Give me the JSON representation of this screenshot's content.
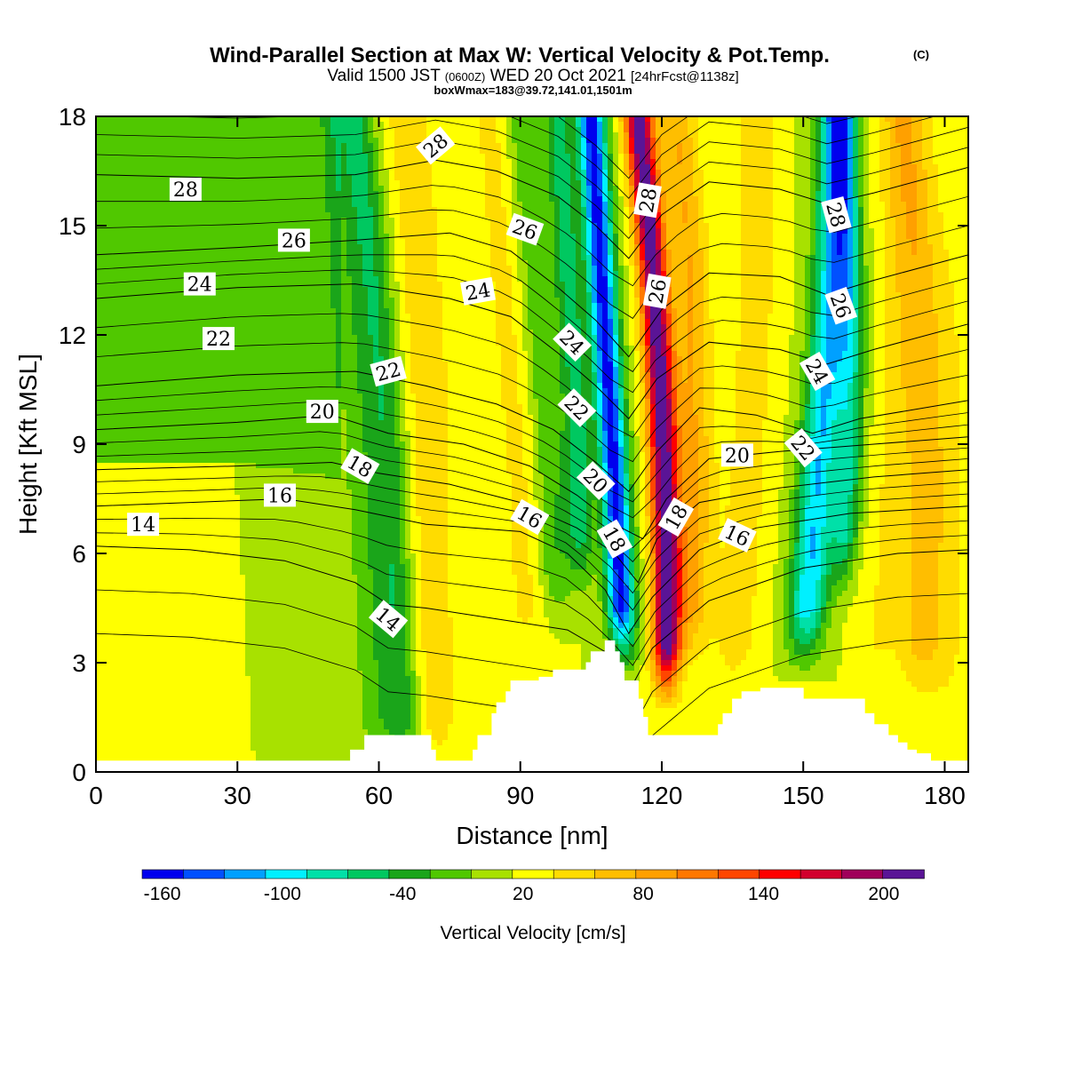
{
  "chart_data": {
    "type": "heatmap",
    "title": "Wind-Parallel Section at Max W: Vertical Velocity & Pot.Temp.",
    "title_mark": "(C)",
    "subtitle_parts": [
      "Valid 1500 JST",
      "(0600Z)",
      "WED 20 Oct 2021",
      "[24hrFcst@1138z]"
    ],
    "subtitle2": "boxWmax=183@39.72,141.01,1501m",
    "xlabel": "Distance [nm]",
    "ylabel": "Height [Kft MSL]",
    "xlim": [
      0,
      185
    ],
    "ylim": [
      0,
      18
    ],
    "xticks": [
      "0",
      "30",
      "60",
      "90",
      "120",
      "150",
      "180"
    ],
    "xtick_values": [
      0,
      30,
      60,
      90,
      120,
      150,
      180
    ],
    "yticks": [
      "0",
      "3",
      "6",
      "9",
      "12",
      "15",
      "18"
    ],
    "ytick_values": [
      0,
      3,
      6,
      9,
      12,
      15,
      18
    ],
    "colorbar": {
      "label": "Vertical Velocity [cm/s]",
      "min": -170,
      "max": 220,
      "step": 20,
      "tick_labels": [
        "-160",
        "-100",
        "-40",
        "20",
        "80",
        "140",
        "200"
      ],
      "tick_values": [
        -160,
        -100,
        -40,
        20,
        80,
        140,
        200
      ],
      "colors": [
        "#0000ee",
        "#0050ff",
        "#00a0ff",
        "#00f0ff",
        "#00e0a8",
        "#00c860",
        "#1aa51a",
        "#50c800",
        "#a8e100",
        "#ffff00",
        "#ffdc00",
        "#ffbe00",
        "#ffa000",
        "#ff7800",
        "#ff4600",
        "#ff0000",
        "#d2002d",
        "#a0005a",
        "#5a1496"
      ]
    },
    "w_field": {
      "background": 10,
      "zones": [
        {
          "x": [
            0,
            1,
            5,
            10,
            20,
            30
          ],
          "y": [
            0,
            5.5,
            7.2,
            8,
            8.7,
            8.7
          ],
          "x2": [
            0,
            60,
            58,
            55,
            52,
            50
          ],
          "value": 10
        },
        {
          "x": [
            0,
            40
          ],
          "y": [
            8,
            18
          ],
          "value": -15
        }
      ],
      "bands": [
        {
          "center": [
            [
              60,
              0
            ],
            [
              58,
              5
            ],
            [
              56,
              9
            ],
            [
              54,
              13
            ],
            [
              52,
              18
            ]
          ],
          "sigma": 4.5,
          "amp": -30
        },
        {
          "center": [
            [
              66,
              0
            ],
            [
              64,
              4
            ],
            [
              62,
              9
            ],
            [
              58,
              15
            ],
            [
              55,
              18
            ]
          ],
          "sigma": 4,
          "amp": -55
        },
        {
          "center": [
            [
              72,
              0
            ],
            [
              71,
              6
            ],
            [
              70,
              11
            ],
            [
              68,
              15
            ],
            [
              66,
              18
            ]
          ],
          "sigma": 5,
          "amp": 35
        },
        {
          "center": [
            [
              82,
              1
            ],
            [
              82,
              5
            ],
            [
              80,
              10
            ],
            [
              76,
              18
            ]
          ],
          "sigma": 4,
          "amp": 15
        },
        {
          "center": [
            [
              92,
              3
            ],
            [
              90,
              8
            ],
            [
              87,
              13
            ],
            [
              84,
              18
            ]
          ],
          "sigma": 4.5,
          "amp": 25
        },
        {
          "center": [
            [
              98,
              4
            ],
            [
              96,
              9
            ],
            [
              93,
              14
            ],
            [
              90,
              18
            ]
          ],
          "sigma": 3.5,
          "amp": -40
        },
        {
          "center": [
            [
              112,
              3
            ],
            [
              110,
              8
            ],
            [
              108,
              12
            ],
            [
              105,
              18
            ]
          ],
          "sigma": 3,
          "amp": -170
        },
        {
          "center": [
            [
              103,
              5
            ],
            [
              102,
              10
            ],
            [
              100,
              14
            ],
            [
              98,
              18
            ]
          ],
          "sigma": 3,
          "amp": -70
        },
        {
          "center": [
            [
              121,
              2
            ],
            [
              121,
              6
            ],
            [
              120,
              10
            ],
            [
              118,
              14
            ],
            [
              115,
              18
            ]
          ],
          "sigma": 3,
          "amp": 200
        },
        {
          "center": [
            [
              126,
              3
            ],
            [
              127,
              8
            ],
            [
              126,
              14
            ],
            [
              123,
              18
            ]
          ],
          "sigma": 4,
          "amp": 60
        },
        {
          "center": [
            [
              135,
              2
            ],
            [
              138,
              8
            ],
            [
              140,
              13
            ],
            [
              140,
              18
            ]
          ],
          "sigma": 5,
          "amp": 30
        },
        {
          "center": [
            [
              150,
              3
            ],
            [
              153,
              8
            ],
            [
              156,
              13
            ],
            [
              157,
              18
            ]
          ],
          "sigma": 4,
          "amp": -120
        },
        {
          "center": [
            [
              158,
              5
            ],
            [
              160,
              9
            ],
            [
              160,
              13
            ],
            [
              158,
              18
            ]
          ],
          "sigma": 3,
          "amp": -80
        },
        {
          "center": [
            [
              165,
              2
            ],
            [
              168,
              8
            ],
            [
              170,
              13
            ],
            [
              170,
              18
            ]
          ],
          "sigma": 4.5,
          "amp": 20
        },
        {
          "center": [
            [
              175,
              2
            ],
            [
              176,
              8
            ],
            [
              175,
              13
            ],
            [
              172,
              18
            ]
          ],
          "sigma": 5,
          "amp": 50
        },
        {
          "center": [
            [
              182,
              1
            ],
            [
              183,
              8
            ],
            [
              184,
              14
            ],
            [
              185,
              18
            ]
          ],
          "sigma": 5,
          "amp": 15
        }
      ]
    },
    "theta_contours": [
      {
        "value": 14,
        "points": [
          [
            0,
            6.2
          ],
          [
            20,
            6.1
          ],
          [
            40,
            5.8
          ],
          [
            55,
            5.2
          ],
          [
            62,
            4.6
          ],
          [
            70,
            4.5
          ],
          [
            85,
            4.2
          ],
          [
            100,
            3.9
          ],
          [
            108,
            3.3
          ],
          [
            113,
            2.2
          ],
          [
            118,
            3.4
          ],
          [
            130,
            4.7
          ],
          [
            150,
            5.6
          ],
          [
            170,
            6.0
          ],
          [
            185,
            6.1
          ]
        ]
      },
      {
        "value": 16,
        "points": [
          [
            0,
            7.3
          ],
          [
            20,
            7.4
          ],
          [
            40,
            7.5
          ],
          [
            55,
            7.2
          ],
          [
            70,
            6.8
          ],
          [
            90,
            6.6
          ],
          [
            100,
            6.0
          ],
          [
            108,
            5.0
          ],
          [
            113,
            3.8
          ],
          [
            118,
            4.8
          ],
          [
            128,
            6.1
          ],
          [
            140,
            6.7
          ],
          [
            160,
            7.1
          ],
          [
            185,
            7.3
          ]
        ]
      },
      {
        "value": 18,
        "points": [
          [
            0,
            8.3
          ],
          [
            30,
            8.4
          ],
          [
            50,
            8.5
          ],
          [
            60,
            8.2
          ],
          [
            75,
            7.9
          ],
          [
            90,
            7.4
          ],
          [
            102,
            6.7
          ],
          [
            110,
            6.0
          ],
          [
            115,
            5.2
          ],
          [
            119,
            6.4
          ],
          [
            128,
            7.4
          ],
          [
            145,
            7.8
          ],
          [
            165,
            8.1
          ],
          [
            185,
            8.3
          ]
        ]
      },
      {
        "value": 20,
        "points": [
          [
            0,
            9.4
          ],
          [
            30,
            9.6
          ],
          [
            50,
            9.8
          ],
          [
            62,
            9.3
          ],
          [
            78,
            9.0
          ],
          [
            92,
            8.4
          ],
          [
            102,
            7.6
          ],
          [
            110,
            6.8
          ],
          [
            116,
            6.4
          ],
          [
            121,
            7.5
          ],
          [
            130,
            8.6
          ],
          [
            145,
            8.8
          ],
          [
            165,
            9.0
          ],
          [
            185,
            9.2
          ]
        ]
      },
      {
        "value": 22,
        "points": [
          [
            0,
            10.6
          ],
          [
            30,
            10.9
          ],
          [
            55,
            11.0
          ],
          [
            70,
            10.6
          ],
          [
            85,
            10.1
          ],
          [
            97,
            9.4
          ],
          [
            106,
            8.5
          ],
          [
            113,
            7.7
          ],
          [
            119,
            8.8
          ],
          [
            128,
            10.0
          ],
          [
            140,
            9.8
          ],
          [
            152,
            9.3
          ],
          [
            162,
            9.7
          ],
          [
            185,
            10.2
          ]
        ]
      },
      {
        "value": 24,
        "points": [
          [
            0,
            13.0
          ],
          [
            30,
            13.3
          ],
          [
            55,
            13.4
          ],
          [
            75,
            13.0
          ],
          [
            88,
            12.5
          ],
          [
            98,
            11.5
          ],
          [
            106,
            10.6
          ],
          [
            113,
            9.7
          ],
          [
            119,
            10.8
          ],
          [
            130,
            11.8
          ],
          [
            145,
            11.6
          ],
          [
            155,
            11.2
          ],
          [
            165,
            11.6
          ],
          [
            185,
            12.3
          ]
        ]
      },
      {
        "value": 26,
        "points": [
          [
            0,
            14.2
          ],
          [
            30,
            14.4
          ],
          [
            55,
            14.6
          ],
          [
            75,
            14.8
          ],
          [
            88,
            14.3
          ],
          [
            98,
            13.3
          ],
          [
            106,
            12.4
          ],
          [
            113,
            11.4
          ],
          [
            120,
            12.7
          ],
          [
            130,
            13.7
          ],
          [
            145,
            13.6
          ],
          [
            155,
            13.1
          ],
          [
            165,
            13.5
          ],
          [
            185,
            14.2
          ]
        ]
      },
      {
        "value": 28,
        "points": [
          [
            0,
            16.4
          ],
          [
            30,
            16.3
          ],
          [
            55,
            16.4
          ],
          [
            72,
            16.8
          ],
          [
            85,
            16.5
          ],
          [
            98,
            15.8
          ],
          [
            106,
            15.0
          ],
          [
            113,
            14.1
          ],
          [
            120,
            15.3
          ],
          [
            130,
            16.2
          ],
          [
            145,
            16.0
          ],
          [
            155,
            15.6
          ],
          [
            165,
            15.9
          ],
          [
            185,
            16.6
          ]
        ]
      }
    ],
    "theta_extra_lines": 24,
    "contour_labels": [
      {
        "text": "28",
        "x": 19,
        "y": 16.0,
        "angle": 0
      },
      {
        "text": "26",
        "x": 42,
        "y": 14.6,
        "angle": 0
      },
      {
        "text": "24",
        "x": 22,
        "y": 13.4,
        "angle": 0
      },
      {
        "text": "22",
        "x": 26,
        "y": 11.9,
        "angle": 0
      },
      {
        "text": "20",
        "x": 48,
        "y": 9.9,
        "angle": 0
      },
      {
        "text": "16",
        "x": 39,
        "y": 7.6,
        "angle": 0
      },
      {
        "text": "14",
        "x": 10,
        "y": 6.8,
        "angle": 0
      },
      {
        "text": "18",
        "x": 56,
        "y": 8.4,
        "angle": 30
      },
      {
        "text": "22",
        "x": 62,
        "y": 11.0,
        "angle": -15
      },
      {
        "text": "14",
        "x": 62,
        "y": 4.2,
        "angle": 40
      },
      {
        "text": "28",
        "x": 72,
        "y": 17.2,
        "angle": -40
      },
      {
        "text": "24",
        "x": 81,
        "y": 13.2,
        "angle": -10
      },
      {
        "text": "26",
        "x": 91,
        "y": 14.9,
        "angle": 20
      },
      {
        "text": "16",
        "x": 92,
        "y": 7.0,
        "angle": 30
      },
      {
        "text": "24",
        "x": 101,
        "y": 11.8,
        "angle": 45
      },
      {
        "text": "22",
        "x": 102,
        "y": 10.0,
        "angle": 45
      },
      {
        "text": "20",
        "x": 106,
        "y": 8.0,
        "angle": 45
      },
      {
        "text": "18",
        "x": 110,
        "y": 6.4,
        "angle": 60
      },
      {
        "text": "28",
        "x": 117,
        "y": 15.7,
        "angle": -80
      },
      {
        "text": "26",
        "x": 119,
        "y": 13.2,
        "angle": -80
      },
      {
        "text": "18",
        "x": 123,
        "y": 7.0,
        "angle": -60
      },
      {
        "text": "20",
        "x": 136,
        "y": 8.7,
        "angle": 0
      },
      {
        "text": "16",
        "x": 136,
        "y": 6.5,
        "angle": 25
      },
      {
        "text": "22",
        "x": 150,
        "y": 8.9,
        "angle": 50
      },
      {
        "text": "24",
        "x": 153,
        "y": 11.0,
        "angle": 60
      },
      {
        "text": "26",
        "x": 158,
        "y": 12.8,
        "angle": 70
      },
      {
        "text": "28",
        "x": 157,
        "y": 15.3,
        "angle": 75
      }
    ],
    "terrain": {
      "x": [
        0,
        52,
        54,
        57,
        69,
        71,
        72,
        75,
        78,
        80,
        81,
        84,
        85,
        87,
        88,
        90,
        91,
        93,
        94,
        96,
        97,
        103,
        104,
        105,
        108,
        109,
        110,
        111,
        112,
        115,
        116,
        117,
        118,
        119,
        120,
        126,
        132,
        133,
        135,
        137,
        138,
        140,
        141,
        142,
        143,
        150,
        151,
        162,
        163,
        165,
        168,
        170,
        172,
        174,
        176,
        177,
        179,
        185
      ],
      "y": [
        0.3,
        0.3,
        0.6,
        1.0,
        1.0,
        0.6,
        0.3,
        0.3,
        0.3,
        0.6,
        1.0,
        1.6,
        1.9,
        2.2,
        2.5,
        2.5,
        2.5,
        2.5,
        2.6,
        2.6,
        2.8,
        2.8,
        3.0,
        3.3,
        3.6,
        3.6,
        3.3,
        3.0,
        2.5,
        2.0,
        1.5,
        1.0,
        1.0,
        1.0,
        1.0,
        1.0,
        1.3,
        1.6,
        2.0,
        2.2,
        2.2,
        2.2,
        2.3,
        2.3,
        2.3,
        2.0,
        2.0,
        2.0,
        1.6,
        1.3,
        1.0,
        0.8,
        0.6,
        0.5,
        0.5,
        0.3,
        0.3,
        0.3
      ]
    }
  }
}
